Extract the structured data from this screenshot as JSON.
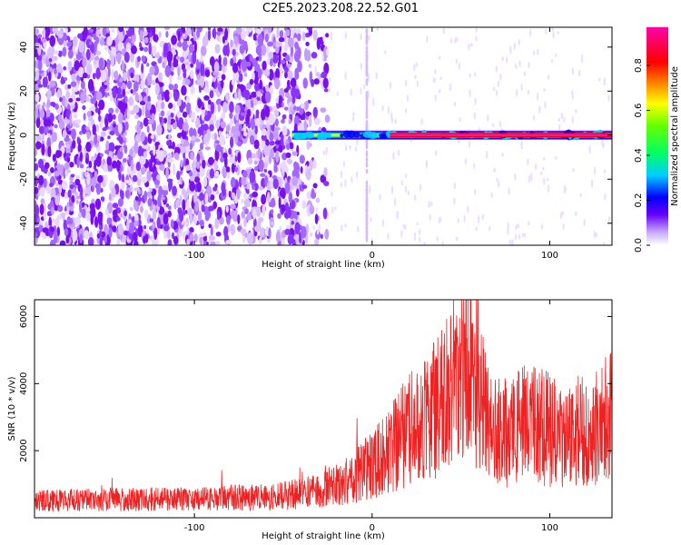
{
  "title": "C2E5.2023.208.22.52.G01",
  "colors": {
    "signal": "#ee2222",
    "sidescatter": "#7700ee",
    "background": "#ffffff"
  },
  "chart_data": [
    {
      "type": "heatmap",
      "xlabel": "Height of straight line (km)",
      "ylabel": "Frequency (Hz)",
      "xlim": [
        -190,
        135
      ],
      "ylim": [
        -50,
        49
      ],
      "xticks": [
        -100,
        0,
        100
      ],
      "yticks": [
        -40,
        -20,
        0,
        20,
        40
      ],
      "colorbar": {
        "label": "Normalized spectral amplitude",
        "range": [
          0.0,
          0.97
        ],
        "ticks": [
          0.0,
          0.2,
          0.4,
          0.6,
          0.8
        ]
      },
      "features": {
        "noise_region_x": [
          -190,
          -30
        ],
        "signal_line_frequency": 0,
        "signal_line_x": [
          10,
          135
        ]
      }
    },
    {
      "type": "line",
      "xlabel": "Height of straight line (km)",
      "ylabel": "SNR (10 * v/v)",
      "xlim": [
        -190,
        135
      ],
      "ylim": [
        0,
        6500
      ],
      "xticks": [
        -100,
        0,
        100
      ],
      "yticks": [
        2000,
        4000,
        6000
      ],
      "series": [
        {
          "x": [
            -190,
            -150,
            -100,
            -50,
            -30,
            -10,
            0,
            10,
            20,
            30,
            40,
            45,
            50,
            55,
            60,
            65,
            70,
            80,
            90,
            100,
            110,
            120,
            130,
            135
          ],
          "values": [
            500,
            550,
            550,
            650,
            800,
            1200,
            1600,
            2000,
            2600,
            3000,
            3500,
            4000,
            4300,
            4800,
            3800,
            2800,
            2500,
            2600,
            2900,
            2600,
            2400,
            2600,
            2900,
            3100
          ]
        }
      ]
    }
  ]
}
